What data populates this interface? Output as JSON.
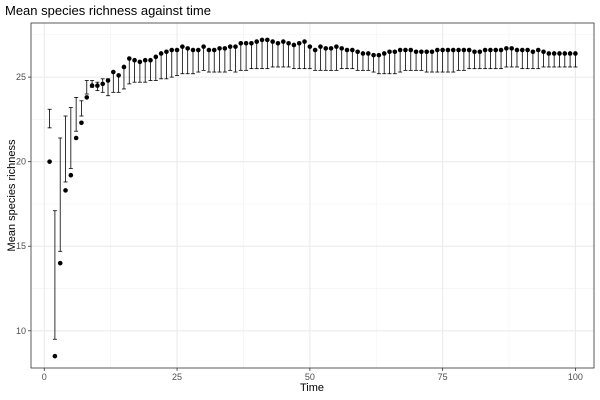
{
  "chart_data": {
    "type": "scatter",
    "title": "Mean species richness against time",
    "xlabel": "Time",
    "ylabel": "Mean species richness",
    "xlim": [
      -2.5,
      103.5
    ],
    "ylim": [
      7.8,
      28.2
    ],
    "xticks": [
      0,
      25,
      50,
      75,
      100
    ],
    "yticks": [
      10,
      15,
      20,
      25
    ],
    "grid": true,
    "legend": "none",
    "points_color": "#000000",
    "series": [
      {
        "x": [
          1,
          2,
          3,
          4,
          5,
          6,
          7,
          8,
          9,
          10,
          11,
          12,
          13,
          14,
          15,
          16,
          17,
          18,
          19,
          20,
          21,
          22,
          23,
          24,
          25,
          26,
          27,
          28,
          29,
          30,
          31,
          32,
          33,
          34,
          35,
          36,
          37,
          38,
          39,
          40,
          41,
          42,
          43,
          44,
          45,
          46,
          47,
          48,
          49,
          50,
          51,
          52,
          53,
          54,
          55,
          56,
          57,
          58,
          59,
          60,
          61,
          62,
          63,
          64,
          65,
          66,
          67,
          68,
          69,
          70,
          71,
          72,
          73,
          74,
          75,
          76,
          77,
          78,
          79,
          80,
          81,
          82,
          83,
          84,
          85,
          86,
          87,
          88,
          89,
          90,
          91,
          92,
          93,
          94,
          95,
          96,
          97,
          98,
          99,
          100
        ],
        "y": [
          20.0,
          8.5,
          14.0,
          18.3,
          19.2,
          21.4,
          22.3,
          23.8,
          24.5,
          24.5,
          24.6,
          24.8,
          25.3,
          25.1,
          25.6,
          26.1,
          26.0,
          25.9,
          26.0,
          26.0,
          26.2,
          26.4,
          26.5,
          26.6,
          26.6,
          26.8,
          26.7,
          26.6,
          26.6,
          26.8,
          26.6,
          26.6,
          26.7,
          26.7,
          26.8,
          26.8,
          27.0,
          27.0,
          27.0,
          27.1,
          27.2,
          27.2,
          27.1,
          27.0,
          27.1,
          27.0,
          26.9,
          27.0,
          27.1,
          26.8,
          26.6,
          26.8,
          26.7,
          26.7,
          26.8,
          26.7,
          26.6,
          26.6,
          26.5,
          26.4,
          26.4,
          26.3,
          26.3,
          26.4,
          26.5,
          26.5,
          26.6,
          26.6,
          26.6,
          26.5,
          26.5,
          26.5,
          26.5,
          26.6,
          26.6,
          26.6,
          26.6,
          26.6,
          26.6,
          26.6,
          26.5,
          26.5,
          26.6,
          26.6,
          26.6,
          26.6,
          26.7,
          26.7,
          26.6,
          26.6,
          26.6,
          26.5,
          26.6,
          26.5,
          26.4,
          26.4,
          26.4,
          26.4,
          26.4,
          26.4
        ],
        "ymin": [
          22.0,
          9.5,
          14.7,
          18.8,
          19.6,
          21.8,
          22.7,
          24.0,
          24.4,
          24.2,
          24.1,
          23.9,
          24.1,
          24.1,
          24.3,
          24.6,
          24.7,
          24.7,
          24.7,
          24.8,
          24.8,
          24.9,
          24.9,
          25.0,
          25.1,
          25.2,
          25.2,
          25.2,
          25.3,
          25.4,
          25.3,
          25.3,
          25.3,
          25.3,
          25.4,
          25.3,
          25.4,
          25.4,
          25.5,
          25.5,
          25.5,
          25.5,
          25.6,
          25.6,
          25.6,
          25.6,
          25.5,
          25.5,
          25.5,
          25.5,
          25.4,
          25.4,
          25.4,
          25.4,
          25.4,
          25.5,
          25.5,
          25.5,
          25.4,
          25.4,
          25.4,
          25.3,
          25.2,
          25.2,
          25.2,
          25.2,
          25.3,
          25.4,
          25.4,
          25.4,
          25.4,
          25.3,
          25.3,
          25.3,
          25.3,
          25.3,
          25.3,
          25.4,
          25.4,
          25.5,
          25.5,
          25.5,
          25.5,
          25.5,
          25.5,
          25.5,
          25.6,
          25.6,
          25.6,
          25.5,
          25.5,
          25.5,
          25.5,
          25.6,
          25.6,
          25.6,
          25.6,
          25.6,
          25.6,
          25.6
        ],
        "ymax": [
          23.1,
          17.1,
          21.4,
          22.7,
          23.2,
          23.8,
          23.6,
          24.8,
          24.8,
          24.7,
          24.9,
          24.9,
          25.3,
          25.1,
          25.6,
          26.1,
          26.0,
          25.9,
          26.0,
          26.0,
          26.2,
          26.4,
          26.5,
          26.6,
          26.6,
          26.8,
          26.7,
          26.6,
          26.6,
          26.8,
          26.6,
          26.6,
          26.7,
          26.7,
          26.8,
          26.8,
          27.0,
          27.0,
          27.0,
          27.1,
          27.2,
          27.2,
          27.1,
          27.0,
          27.1,
          27.0,
          26.9,
          27.0,
          27.1,
          26.8,
          26.6,
          26.8,
          26.7,
          26.7,
          26.8,
          26.7,
          26.6,
          26.6,
          26.5,
          26.4,
          26.4,
          26.3,
          26.3,
          26.4,
          26.5,
          26.5,
          26.6,
          26.6,
          26.6,
          26.5,
          26.5,
          26.5,
          26.5,
          26.6,
          26.6,
          26.6,
          26.6,
          26.6,
          26.6,
          26.6,
          26.5,
          26.5,
          26.6,
          26.6,
          26.6,
          26.6,
          26.7,
          26.7,
          26.6,
          26.6,
          26.6,
          26.5,
          26.6,
          26.5,
          26.4,
          26.4,
          26.4,
          26.4,
          26.4,
          26.4
        ]
      }
    ]
  }
}
